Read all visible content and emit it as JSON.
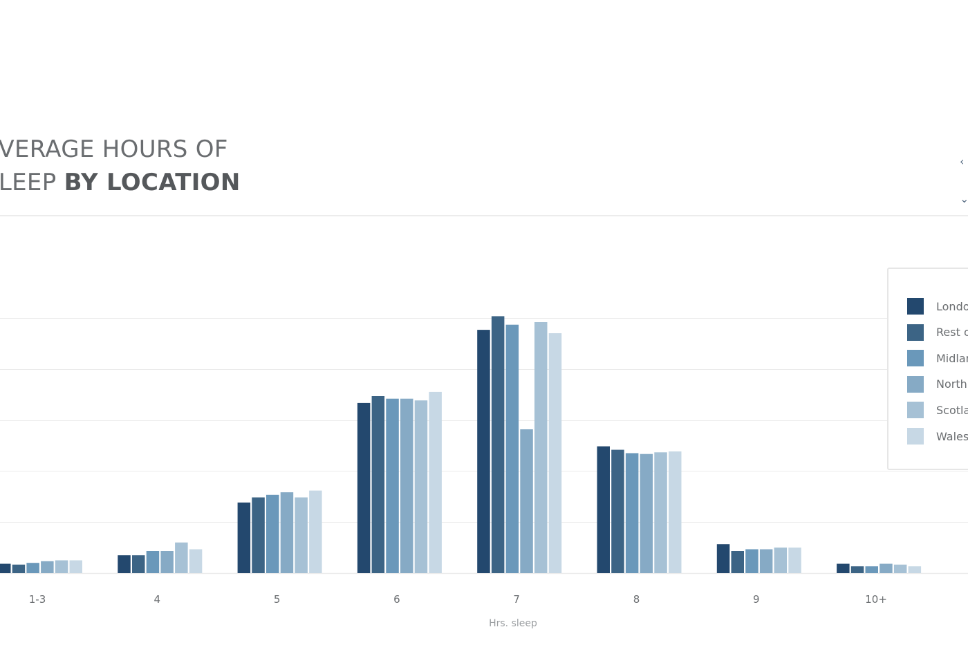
{
  "chart_data": {
    "type": "bar",
    "title": "AVERAGE HOURS OF SLEEP BY LOCATION",
    "title_lines": [
      "AVERAGE HOURS OF",
      "SLEEP",
      "BY LOCATION"
    ],
    "xlabel": "Hrs. sleep",
    "ylabel": "",
    "categories": [
      "1-3",
      "4",
      "5",
      "6",
      "7",
      "8",
      "9",
      "10+"
    ],
    "ylim": [
      0,
      36
    ],
    "gridlines": [
      0,
      6,
      12,
      18,
      24,
      30
    ],
    "grid": true,
    "legend_position": "right",
    "series": [
      {
        "name": "London",
        "color": "#23486e",
        "values": [
          1.1,
          2.1,
          8.3,
          20.0,
          28.6,
          14.9,
          3.4,
          1.1
        ]
      },
      {
        "name": "Rest of South",
        "color": "#3c6485",
        "values": [
          1.0,
          2.1,
          8.9,
          20.8,
          30.2,
          14.5,
          2.6,
          0.8
        ]
      },
      {
        "name": "Midlands",
        "color": "#6a98ba",
        "values": [
          1.2,
          2.6,
          9.2,
          20.5,
          29.2,
          14.1,
          2.8,
          0.8
        ]
      },
      {
        "name": "North",
        "color": "#86aac5",
        "values": [
          1.4,
          2.6,
          9.5,
          20.5,
          16.9,
          14.0,
          2.8,
          1.1
        ]
      },
      {
        "name": "Scotland",
        "color": "#a6c1d5",
        "values": [
          1.5,
          3.6,
          8.9,
          20.3,
          29.5,
          14.2,
          3.0,
          1.0
        ]
      },
      {
        "name": "Wales",
        "color": "#c7d8e5",
        "values": [
          1.5,
          2.8,
          9.7,
          21.3,
          28.2,
          14.3,
          3.0,
          0.8
        ]
      }
    ]
  },
  "legend": {
    "items": [
      {
        "label": "London",
        "color": "#23486e"
      },
      {
        "label": "Rest of South",
        "color": "#3c6485"
      },
      {
        "label": "Midlands",
        "color": "#6a98ba"
      },
      {
        "label": "North",
        "color": "#86aac5"
      },
      {
        "label": "Scotland",
        "color": "#a6c1d5"
      },
      {
        "label": "Wales",
        "color": "#c7d8e5"
      }
    ]
  },
  "colors": {
    "grid": "#ebebeb",
    "text": "#6a6d70",
    "axis_title": "#9a9da0"
  },
  "icons": {
    "edge_controls": "chevron-left-icon"
  }
}
